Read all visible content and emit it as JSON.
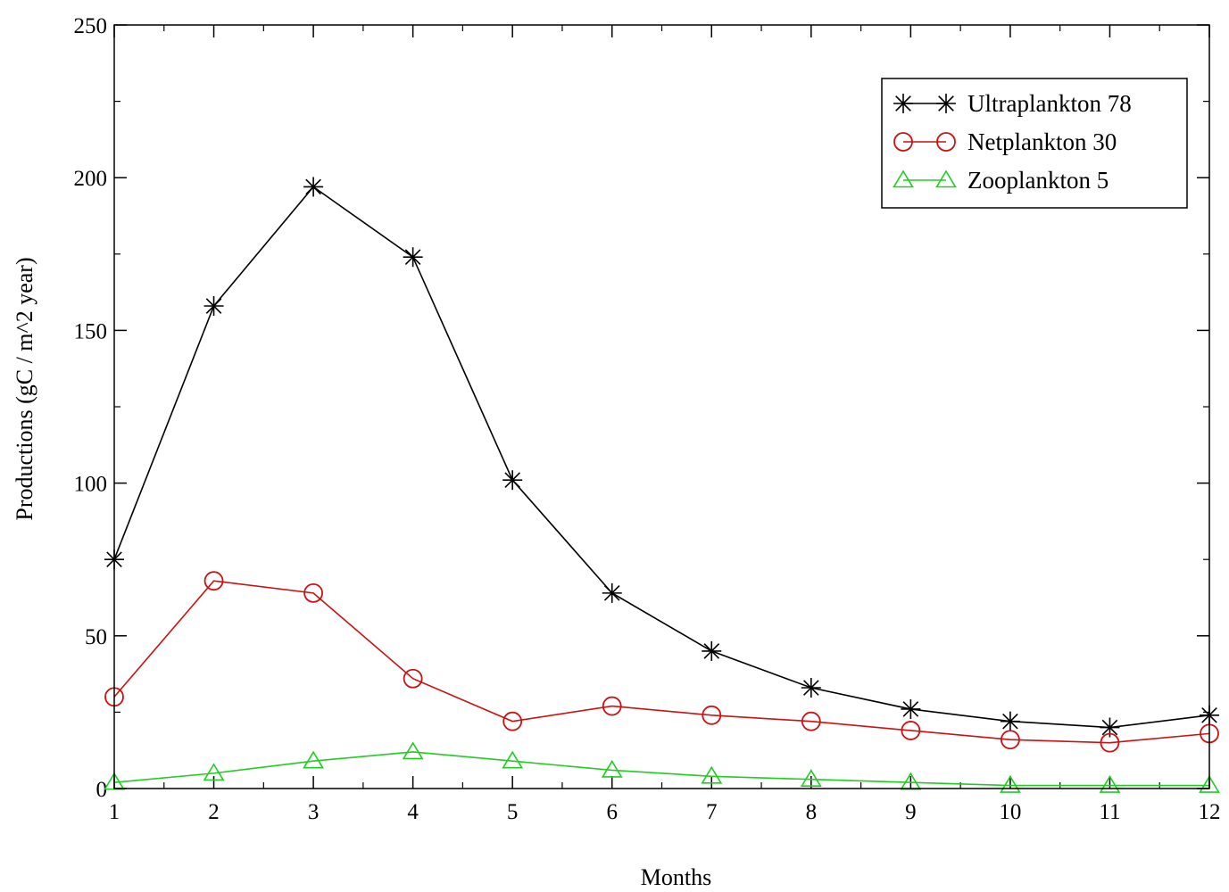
{
  "chart_data": {
    "type": "line",
    "title": "",
    "xlabel": "Months",
    "ylabel": "Productions (gC / m^2 year)",
    "x": [
      1,
      2,
      3,
      4,
      5,
      6,
      7,
      8,
      9,
      10,
      11,
      12
    ],
    "xlim": [
      1,
      12
    ],
    "ylim": [
      0,
      250
    ],
    "xticks": [
      1,
      2,
      3,
      4,
      5,
      6,
      7,
      8,
      9,
      10,
      11,
      12
    ],
    "yticks": [
      0,
      50,
      100,
      150,
      200,
      250
    ],
    "grid": false,
    "legend": "top-right",
    "series": [
      {
        "name": "Ultraplankton 78",
        "color": "#000000",
        "marker": "asterisk",
        "values": [
          75,
          158,
          197,
          174,
          101,
          64,
          45,
          33,
          26,
          22,
          20,
          24
        ]
      },
      {
        "name": "Netplankton 30",
        "color": "#cc1111",
        "marker": "circle",
        "values": [
          30,
          68,
          64,
          36,
          22,
          27,
          24,
          22,
          19,
          16,
          15,
          18
        ]
      },
      {
        "name": "Zooplankton 5",
        "color": "#22cc22",
        "marker": "triangle",
        "values": [
          2,
          5,
          9,
          12,
          9,
          6,
          4,
          3,
          2,
          1,
          1,
          1
        ]
      }
    ]
  }
}
